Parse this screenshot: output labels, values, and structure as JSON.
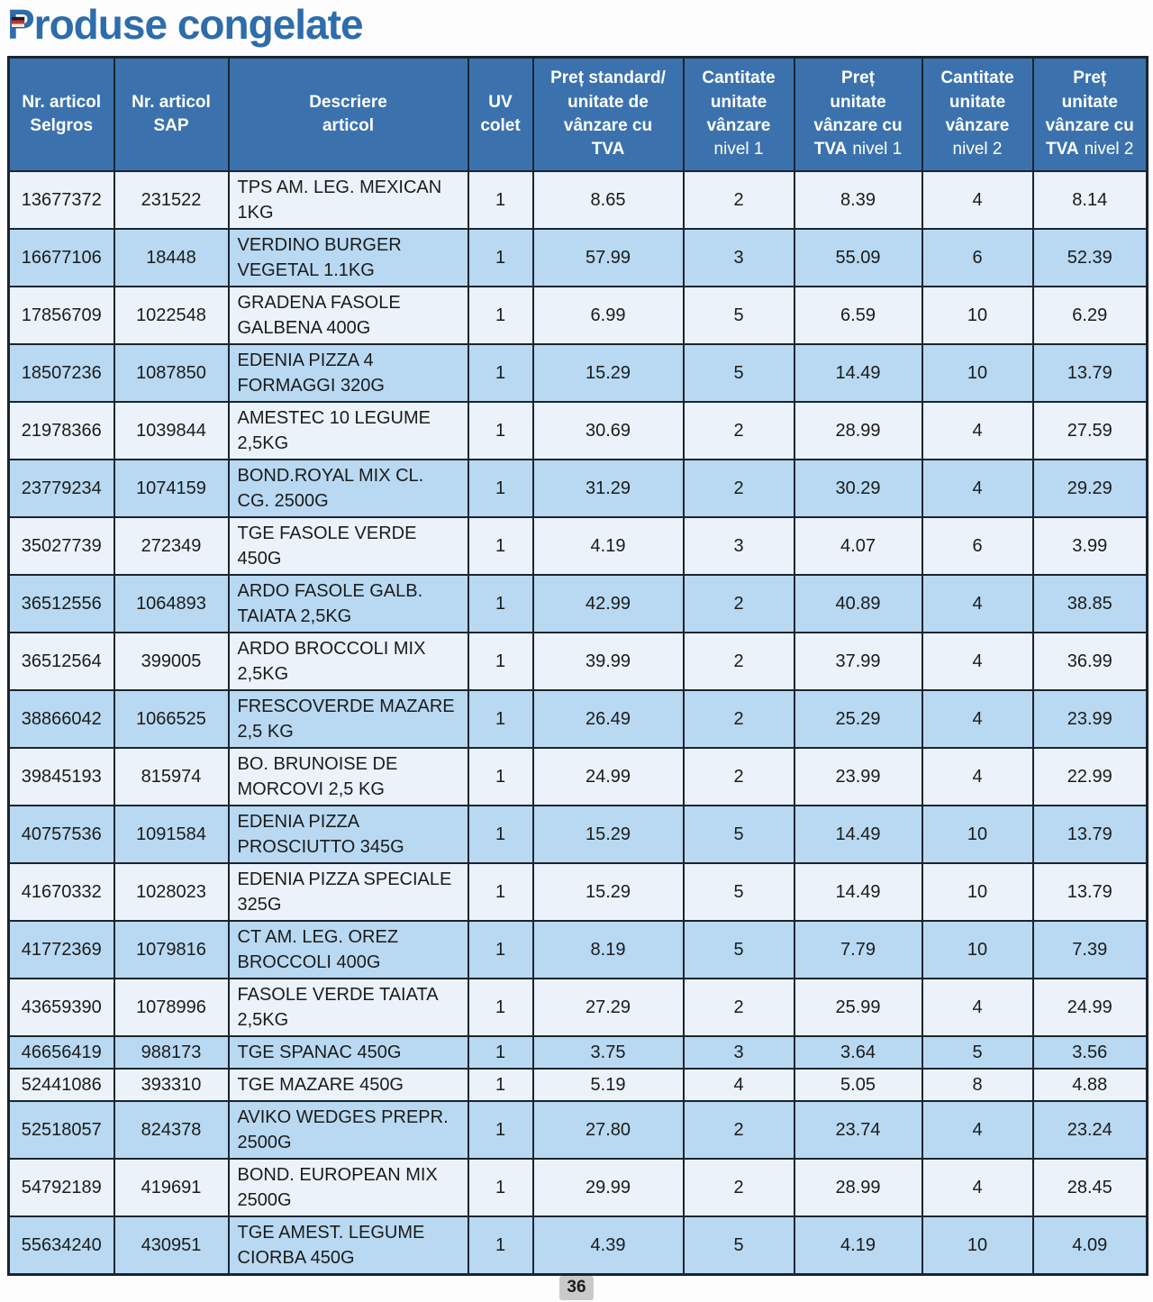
{
  "page": {
    "title": "Produse congelate",
    "page_number": "36"
  },
  "colors": {
    "title": "#2e6cab",
    "header_bg": "#3b72ae",
    "header_text": "#ffffff",
    "row_light": "#ebf2f9",
    "row_alt": "#b8d9f1",
    "border": "#1a2431",
    "cell_text": "#1b1b1b",
    "badge_bg": "#c9c9c9"
  },
  "icons": {
    "flag": "flag-icon"
  },
  "table": {
    "col_keys": [
      "selgros",
      "sap",
      "description",
      "uv",
      "price_standard",
      "qty_nivel1",
      "price_nivel1",
      "qty_nivel2",
      "price_nivel2"
    ],
    "header_cells": [
      {
        "lines": [
          {
            "b": "Nr. articol"
          },
          {
            "b": "Selgros"
          }
        ]
      },
      {
        "lines": [
          {
            "b": "Nr. articol"
          },
          {
            "b": "SAP"
          }
        ]
      },
      {
        "lines": [
          {
            "b": "Descriere"
          },
          {
            "b": "articol"
          }
        ]
      },
      {
        "lines": [
          {
            "b": "UV"
          },
          {
            "b": "colet"
          }
        ]
      },
      {
        "lines": [
          {
            "b": "Preț standard/"
          },
          {
            "b": "unitate de"
          },
          {
            "b": "vânzare cu"
          },
          {
            "b": "TVA"
          }
        ]
      },
      {
        "lines": [
          {
            "b": "Cantitate"
          },
          {
            "b": "unitate"
          },
          {
            "b": "vânzare"
          },
          {
            "n": "nivel 1"
          }
        ]
      },
      {
        "lines": [
          {
            "b": "Preț"
          },
          {
            "b": "unitate"
          },
          {
            "b": "vânzare cu"
          },
          {
            "b": "TVA",
            "n": "nivel 1"
          }
        ]
      },
      {
        "lines": [
          {
            "b": "Cantitate"
          },
          {
            "b": "unitate"
          },
          {
            "b": "vânzare"
          },
          {
            "n": "nivel 2"
          }
        ]
      },
      {
        "lines": [
          {
            "b": "Preț"
          },
          {
            "b": "unitate"
          },
          {
            "b": "vânzare cu"
          },
          {
            "b": "TVA",
            "n": "nivel 2"
          }
        ]
      }
    ],
    "rows": [
      {
        "compact": false,
        "cells": [
          "13677372",
          "231522",
          "TPS AM. LEG. MEXICAN\n1KG",
          "1",
          "8.65",
          "2",
          "8.39",
          "4",
          "8.14"
        ]
      },
      {
        "compact": false,
        "cells": [
          "16677106",
          "18448",
          "VERDINO BURGER\nVEGETAL 1.1KG",
          "1",
          "57.99",
          "3",
          "55.09",
          "6",
          "52.39"
        ]
      },
      {
        "compact": false,
        "cells": [
          "17856709",
          "1022548",
          "GRADENA FASOLE\nGALBENA 400G",
          "1",
          "6.99",
          "5",
          "6.59",
          "10",
          "6.29"
        ]
      },
      {
        "compact": false,
        "cells": [
          "18507236",
          "1087850",
          "EDENIA PIZZA 4\nFORMAGGI 320G",
          "1",
          "15.29",
          "5",
          "14.49",
          "10",
          "13.79"
        ]
      },
      {
        "compact": false,
        "cells": [
          "21978366",
          "1039844",
          "AMESTEC 10 LEGUME\n2,5KG",
          "1",
          "30.69",
          "2",
          "28.99",
          "4",
          "27.59"
        ]
      },
      {
        "compact": false,
        "cells": [
          "23779234",
          "1074159",
          "BOND.ROYAL MIX CL.\nCG. 2500G",
          "1",
          "31.29",
          "2",
          "30.29",
          "4",
          "29.29"
        ]
      },
      {
        "compact": true,
        "cells": [
          "35027739",
          "272349",
          "TGE FASOLE VERDE 450G",
          "1",
          "4.19",
          "3",
          "4.07",
          "6",
          "3.99"
        ]
      },
      {
        "compact": false,
        "cells": [
          "36512556",
          "1064893",
          "ARDO FASOLE GALB.\nTAIATA 2,5KG",
          "1",
          "42.99",
          "2",
          "40.89",
          "4",
          "38.85"
        ]
      },
      {
        "compact": false,
        "cells": [
          "36512564",
          "399005",
          "ARDO BROCCOLI MIX\n2,5KG",
          "1",
          "39.99",
          "2",
          "37.99",
          "4",
          "36.99"
        ]
      },
      {
        "compact": false,
        "cells": [
          "38866042",
          "1066525",
          "FRESCOVERDE MAZARE\n2,5 KG",
          "1",
          "26.49",
          "2",
          "25.29",
          "4",
          "23.99"
        ]
      },
      {
        "compact": false,
        "cells": [
          "39845193",
          "815974",
          "BO. BRUNOISE DE\nMORCOVI 2,5 KG",
          "1",
          "24.99",
          "2",
          "23.99",
          "4",
          "22.99"
        ]
      },
      {
        "compact": false,
        "cells": [
          "40757536",
          "1091584",
          "EDENIA PIZZA\nPROSCIUTTO 345G",
          "1",
          "15.29",
          "5",
          "14.49",
          "10",
          "13.79"
        ]
      },
      {
        "compact": false,
        "cells": [
          "41670332",
          "1028023",
          "EDENIA PIZZA SPECIALE\n325G",
          "1",
          "15.29",
          "5",
          "14.49",
          "10",
          "13.79"
        ]
      },
      {
        "compact": false,
        "cells": [
          "41772369",
          "1079816",
          "CT AM. LEG. OREZ\nBROCCOLI 400G",
          "1",
          "8.19",
          "5",
          "7.79",
          "10",
          "7.39"
        ]
      },
      {
        "compact": false,
        "cells": [
          "43659390",
          "1078996",
          "FASOLE VERDE TAIATA\n2,5KG",
          "1",
          "27.29",
          "2",
          "25.99",
          "4",
          "24.99"
        ]
      },
      {
        "compact": true,
        "cells": [
          "46656419",
          "988173",
          "TGE SPANAC 450G",
          "1",
          "3.75",
          "3",
          "3.64",
          "5",
          "3.56"
        ]
      },
      {
        "compact": true,
        "cells": [
          "52441086",
          "393310",
          "TGE MAZARE 450G",
          "1",
          "5.19",
          "4",
          "5.05",
          "8",
          "4.88"
        ]
      },
      {
        "compact": false,
        "cells": [
          "52518057",
          "824378",
          "AVIKO WEDGES PREPR.\n2500G",
          "1",
          "27.80",
          "2",
          "23.74",
          "4",
          "23.24"
        ]
      },
      {
        "compact": false,
        "cells": [
          "54792189",
          "419691",
          "BOND. EUROPEAN MIX\n2500G",
          "1",
          "29.99",
          "2",
          "28.99",
          "4",
          "28.45"
        ]
      },
      {
        "compact": false,
        "cells": [
          "55634240",
          "430951",
          "TGE AMEST. LEGUME\nCIORBA 450G",
          "1",
          "4.39",
          "5",
          "4.19",
          "10",
          "4.09"
        ]
      }
    ]
  }
}
